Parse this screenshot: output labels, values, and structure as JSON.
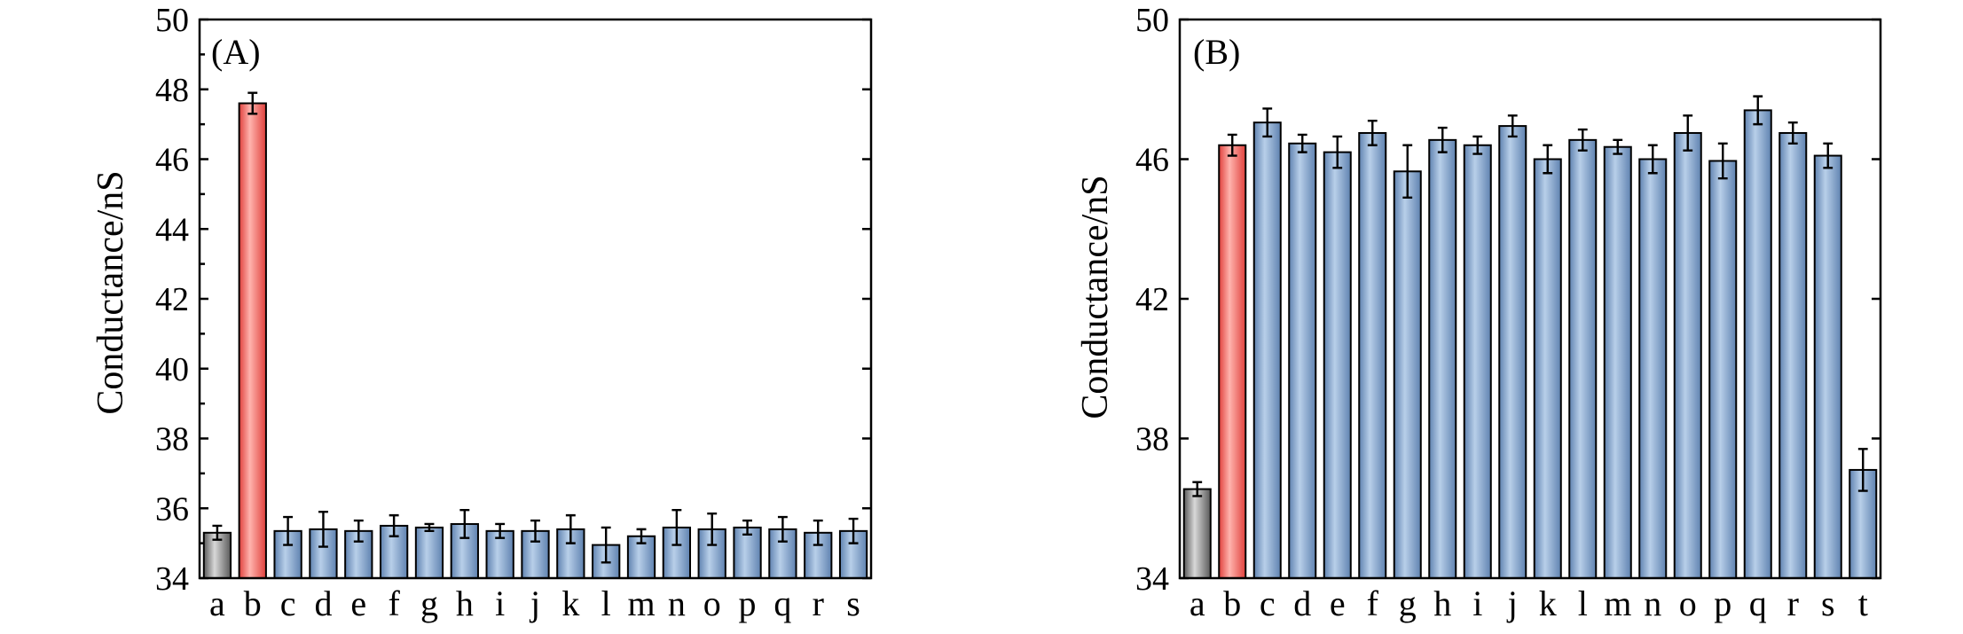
{
  "colors": {
    "control": "#8c8c8c",
    "highlight": "#f05a57",
    "other": "#7f9fc6"
  },
  "chart_data": [
    {
      "type": "bar",
      "title": "(A)",
      "ylabel": "Conductance/nS",
      "xlabel": "",
      "ylim": [
        34,
        50
      ],
      "yticks": [
        34,
        36,
        38,
        40,
        42,
        44,
        46,
        48,
        50
      ],
      "categories": [
        "a",
        "b",
        "c",
        "d",
        "e",
        "f",
        "g",
        "h",
        "i",
        "j",
        "k",
        "l",
        "m",
        "n",
        "o",
        "p",
        "q",
        "r",
        "s"
      ],
      "values": [
        35.3,
        47.6,
        35.35,
        35.4,
        35.35,
        35.5,
        35.45,
        35.55,
        35.35,
        35.35,
        35.4,
        34.95,
        35.2,
        35.45,
        35.4,
        35.45,
        35.4,
        35.3,
        35.35
      ],
      "errors": [
        0.2,
        0.3,
        0.4,
        0.5,
        0.3,
        0.3,
        0.1,
        0.4,
        0.2,
        0.3,
        0.4,
        0.5,
        0.2,
        0.5,
        0.45,
        0.2,
        0.35,
        0.35,
        0.35
      ],
      "bar_roles": [
        "control",
        "highlight",
        "other",
        "other",
        "other",
        "other",
        "other",
        "other",
        "other",
        "other",
        "other",
        "other",
        "other",
        "other",
        "other",
        "other",
        "other",
        "other",
        "other"
      ]
    },
    {
      "type": "bar",
      "title": "(B)",
      "ylabel": "Conductance/nS",
      "xlabel": "",
      "ylim": [
        34,
        50
      ],
      "yticks": [
        34,
        38,
        42,
        46,
        50
      ],
      "categories": [
        "a",
        "b",
        "c",
        "d",
        "e",
        "f",
        "g",
        "h",
        "i",
        "j",
        "k",
        "l",
        "m",
        "n",
        "o",
        "p",
        "q",
        "r",
        "s",
        "t"
      ],
      "values": [
        36.55,
        46.4,
        47.05,
        46.45,
        46.2,
        46.75,
        45.65,
        46.55,
        46.4,
        46.95,
        46.0,
        46.55,
        46.35,
        46.0,
        46.75,
        45.95,
        47.4,
        46.75,
        46.1,
        37.1
      ],
      "errors": [
        0.2,
        0.3,
        0.4,
        0.25,
        0.45,
        0.35,
        0.75,
        0.35,
        0.25,
        0.3,
        0.4,
        0.3,
        0.2,
        0.4,
        0.5,
        0.5,
        0.4,
        0.3,
        0.35,
        0.6
      ],
      "bar_roles": [
        "control",
        "highlight",
        "other",
        "other",
        "other",
        "other",
        "other",
        "other",
        "other",
        "other",
        "other",
        "other",
        "other",
        "other",
        "other",
        "other",
        "other",
        "other",
        "other",
        "other"
      ]
    }
  ]
}
